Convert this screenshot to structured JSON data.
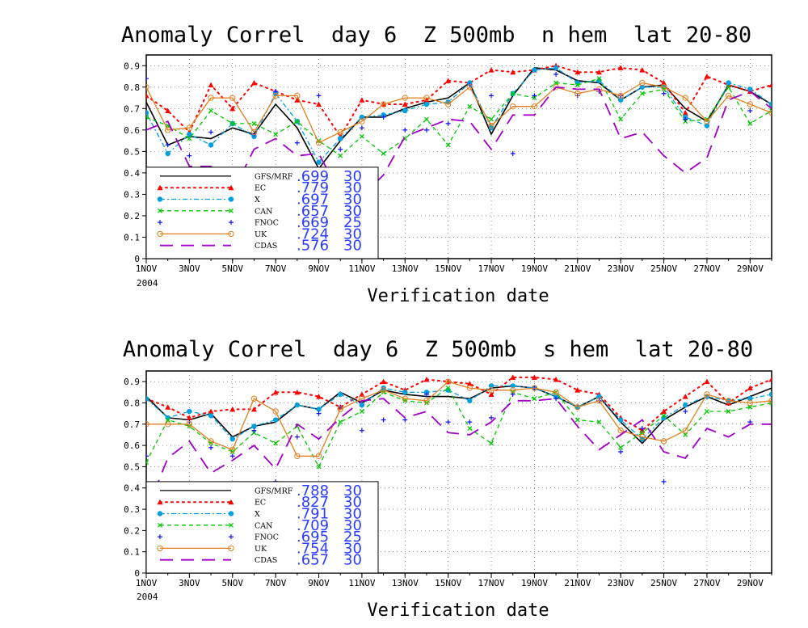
{
  "chart_data": [
    {
      "type": "line",
      "title": "Anomaly Correl  day 6  Z 500mb  n hem  lat 20-80",
      "xlabel": "Verification date",
      "ylabel": "",
      "ylim": [
        0,
        0.95
      ],
      "yticks": [
        "0",
        "0.1",
        "0.2",
        "0.3",
        "0.4",
        "0.5",
        "0.6",
        "0.7",
        "0.8",
        "0.9"
      ],
      "xticks": [
        "1NOV",
        "3NOV",
        "5NOV",
        "7NOV",
        "9NOV",
        "11NOV",
        "13NOV",
        "15NOV",
        "17NOV",
        "19NOV",
        "21NOV",
        "23NOV",
        "25NOV",
        "27NOV",
        "29NOV"
      ],
      "year_label": "2004",
      "grid": true,
      "legend_position": "lower-left",
      "days": [
        1,
        2,
        3,
        4,
        5,
        6,
        7,
        8,
        9,
        10,
        11,
        12,
        13,
        14,
        15,
        16,
        17,
        18,
        19,
        20,
        21,
        22,
        23,
        24,
        25,
        26,
        27,
        28,
        29,
        30
      ],
      "series": [
        {
          "name": "GFS/MRF",
          "mean": ".699",
          "count": "30",
          "color": "#000000",
          "style": "solid",
          "marker": "none",
          "values": [
            0.73,
            0.53,
            0.57,
            0.56,
            0.61,
            0.58,
            0.72,
            0.61,
            0.42,
            0.55,
            0.66,
            0.66,
            0.7,
            0.73,
            0.75,
            0.82,
            0.58,
            0.76,
            0.89,
            0.88,
            0.83,
            0.82,
            0.74,
            0.8,
            0.81,
            0.7,
            0.64,
            0.81,
            0.78,
            0.72
          ]
        },
        {
          "name": "EC",
          "mean": ".779",
          "count": "30",
          "color": "#ff0000",
          "style": "dotted",
          "marker": "triangle",
          "values": [
            0.76,
            0.69,
            0.59,
            0.81,
            0.7,
            0.82,
            0.78,
            0.74,
            0.72,
            0.57,
            0.74,
            0.72,
            0.72,
            0.74,
            0.83,
            0.82,
            0.88,
            0.87,
            0.88,
            0.9,
            0.87,
            0.87,
            0.89,
            0.88,
            0.82,
            0.68,
            0.85,
            0.81,
            0.78,
            0.81
          ]
        },
        {
          "name": "X",
          "mean": ".697",
          "count": "30",
          "color": "#00a0e0",
          "style": "dashdot",
          "marker": "circle",
          "values": [
            0.68,
            0.49,
            0.58,
            0.53,
            0.63,
            0.57,
            0.77,
            0.64,
            0.45,
            0.56,
            0.66,
            0.67,
            0.69,
            0.72,
            0.73,
            0.82,
            0.61,
            0.77,
            0.88,
            0.89,
            0.82,
            0.83,
            0.74,
            0.8,
            0.8,
            0.66,
            0.62,
            0.82,
            0.79,
            0.72
          ]
        },
        {
          "name": "CAN",
          "mean": ".657",
          "count": "30",
          "color": "#00c800",
          "style": "dashed",
          "marker": "x",
          "values": [
            0.66,
            0.62,
            0.56,
            0.69,
            0.63,
            0.63,
            0.58,
            0.64,
            0.55,
            0.48,
            0.57,
            0.49,
            0.56,
            0.65,
            0.53,
            0.71,
            0.65,
            0.77,
            0.75,
            0.82,
            0.81,
            0.84,
            0.65,
            0.77,
            0.79,
            0.64,
            0.65,
            0.8,
            0.63,
            0.69
          ]
        },
        {
          "name": "FNOC",
          "mean": ".669",
          "count": "25",
          "color": "#1010ff",
          "style": "none",
          "marker": "plus",
          "values": [
            0.84,
            0.53,
            0.48,
            0.59,
            null,
            0.58,
            0.78,
            0.54,
            0.76,
            0.51,
            0.61,
            0.66,
            0.6,
            0.6,
            0.63,
            0.81,
            0.76,
            0.49,
            0.76,
            0.86,
            0.76,
            0.78,
            0.76,
            null,
            0.77,
            0.65,
            null,
            null,
            0.69,
            null
          ]
        },
        {
          "name": "UK",
          "mean": ".724",
          "count": "30",
          "color": "#e08020",
          "style": "solid",
          "marker": "circle-open",
          "values": [
            0.8,
            0.6,
            0.61,
            0.75,
            0.75,
            0.59,
            0.76,
            0.76,
            0.54,
            0.59,
            0.64,
            0.72,
            0.75,
            0.75,
            0.72,
            0.8,
            0.62,
            0.71,
            0.71,
            0.8,
            0.77,
            0.79,
            0.76,
            0.82,
            0.8,
            0.75,
            0.64,
            0.76,
            0.72,
            0.68
          ]
        },
        {
          "name": "CDAS",
          "mean": ".576",
          "count": "30",
          "color": "#a000c8",
          "style": "longdash",
          "marker": "none",
          "values": [
            0.6,
            0.64,
            0.43,
            0.43,
            0.31,
            0.51,
            0.56,
            0.48,
            0.49,
            0.3,
            0.29,
            0.39,
            0.57,
            0.61,
            0.65,
            0.64,
            0.51,
            0.67,
            0.67,
            0.8,
            0.79,
            0.79,
            0.56,
            0.59,
            0.48,
            0.4,
            0.47,
            0.74,
            0.78,
            0.7
          ]
        }
      ]
    },
    {
      "type": "line",
      "title": "Anomaly Correl  day 6  Z 500mb  s hem  lat 20-80",
      "xlabel": "Verification date",
      "ylabel": "",
      "ylim": [
        0,
        0.95
      ],
      "yticks": [
        "0",
        "0.1",
        "0.2",
        "0.3",
        "0.4",
        "0.5",
        "0.6",
        "0.7",
        "0.8",
        "0.9"
      ],
      "xticks": [
        "1NOV",
        "3NOV",
        "5NOV",
        "7NOV",
        "9NOV",
        "11NOV",
        "13NOV",
        "15NOV",
        "17NOV",
        "19NOV",
        "21NOV",
        "23NOV",
        "25NOV",
        "27NOV",
        "29NOV"
      ],
      "year_label": "2004",
      "grid": true,
      "legend_position": "lower-left",
      "days": [
        1,
        2,
        3,
        4,
        5,
        6,
        7,
        8,
        9,
        10,
        11,
        12,
        13,
        14,
        15,
        16,
        17,
        18,
        19,
        20,
        21,
        22,
        23,
        24,
        25,
        26,
        27,
        28,
        29,
        30
      ],
      "series": [
        {
          "name": "GFS/MRF",
          "mean": ".788",
          "count": "30",
          "color": "#000000",
          "style": "solid",
          "marker": "none",
          "values": [
            0.83,
            0.73,
            0.72,
            0.75,
            0.64,
            0.69,
            0.71,
            0.79,
            0.77,
            0.85,
            0.8,
            0.86,
            0.84,
            0.83,
            0.83,
            0.82,
            0.87,
            0.88,
            0.87,
            0.83,
            0.78,
            0.83,
            0.71,
            0.61,
            0.72,
            0.78,
            0.83,
            0.79,
            0.83,
            0.87
          ]
        },
        {
          "name": "EC",
          "mean": ".827",
          "count": "30",
          "color": "#ff0000",
          "style": "dotted",
          "marker": "triangle",
          "values": [
            0.82,
            0.78,
            0.73,
            0.76,
            0.77,
            0.77,
            0.85,
            0.85,
            0.83,
            0.78,
            0.84,
            0.9,
            0.86,
            0.91,
            0.9,
            0.89,
            0.84,
            0.92,
            0.92,
            0.91,
            0.86,
            0.84,
            0.73,
            0.67,
            0.76,
            0.83,
            0.9,
            0.8,
            0.87,
            0.91
          ]
        },
        {
          "name": "X",
          "mean": ".791",
          "count": "30",
          "color": "#00a0e0",
          "style": "dashdot",
          "marker": "circle",
          "values": [
            0.82,
            0.73,
            0.76,
            0.74,
            0.63,
            0.69,
            0.72,
            0.79,
            0.77,
            0.84,
            0.79,
            0.87,
            0.85,
            0.85,
            0.86,
            0.81,
            0.88,
            0.88,
            0.87,
            0.83,
            0.78,
            0.83,
            0.72,
            0.63,
            0.73,
            0.79,
            0.83,
            0.81,
            0.82,
            0.84
          ]
        },
        {
          "name": "CAN",
          "mean": ".709",
          "count": "30",
          "color": "#00c800",
          "style": "dashed",
          "marker": "x",
          "values": [
            0.52,
            0.72,
            0.69,
            0.61,
            0.57,
            0.66,
            0.61,
            0.69,
            0.5,
            0.71,
            0.76,
            0.85,
            0.81,
            0.8,
            0.87,
            0.68,
            0.61,
            0.85,
            0.82,
            0.85,
            0.72,
            0.71,
            0.59,
            0.66,
            0.74,
            0.65,
            0.76,
            0.76,
            0.78,
            0.8
          ]
        },
        {
          "name": "FNOC",
          "mean": ".695",
          "count": "25",
          "color": "#1010ff",
          "style": "none",
          "marker": "plus",
          "values": [
            0.55,
            null,
            0.71,
            0.59,
            0.55,
            0.67,
            0.43,
            0.64,
            0.75,
            0.78,
            0.67,
            0.72,
            0.72,
            0.84,
            0.71,
            0.71,
            0.73,
            0.84,
            0.87,
            0.82,
            null,
            0.81,
            0.57,
            0.68,
            0.43,
            0.76,
            null,
            null,
            0.71,
            null
          ]
        },
        {
          "name": "UK",
          "mean": ".754",
          "count": "30",
          "color": "#e08020",
          "style": "solid",
          "marker": "circle-open",
          "values": [
            0.7,
            0.7,
            0.7,
            0.62,
            0.58,
            0.82,
            0.76,
            0.55,
            0.55,
            0.77,
            0.82,
            0.86,
            0.82,
            0.81,
            0.9,
            0.87,
            0.86,
            0.86,
            0.87,
            0.85,
            0.78,
            0.81,
            0.67,
            0.64,
            0.62,
            0.67,
            0.84,
            0.81,
            0.8,
            0.81
          ]
        },
        {
          "name": "CDAS",
          "mean": ".657",
          "count": "30",
          "color": "#a000c8",
          "style": "longdash",
          "marker": "none",
          "values": [
            0.29,
            0.54,
            0.62,
            0.47,
            0.53,
            0.6,
            0.49,
            0.7,
            0.63,
            0.73,
            0.81,
            0.82,
            0.73,
            0.76,
            0.66,
            0.65,
            0.71,
            0.81,
            0.81,
            0.82,
            0.69,
            0.58,
            0.65,
            0.72,
            0.57,
            0.54,
            0.68,
            0.64,
            0.7,
            0.7
          ]
        }
      ]
    }
  ]
}
